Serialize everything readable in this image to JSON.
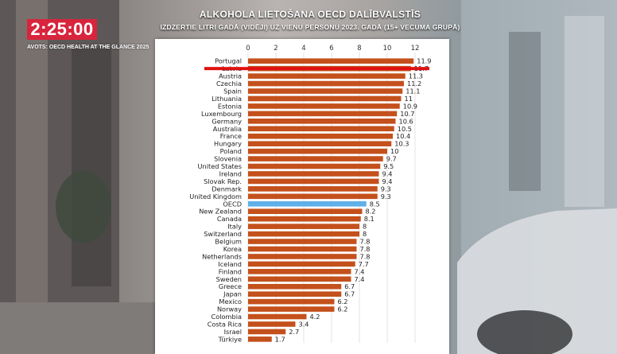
{
  "header": {
    "clock": "2:25:00",
    "source": "AVOTS: OECD HEALTH AT THE GLANCE 2025",
    "title": "ALKOHOLA LIETOŠANA OECD DALĪBVALSTĪS",
    "subtitle": "IZDZERTIE LITRI GADĀ (VIDĒJI) UZ VIENU PERSONU 2023. GADĀ (15+ VECUMA GRUPĀ)"
  },
  "colors": {
    "bar": "#c4501c",
    "highlight_bar": "#5fb0e8",
    "highlight_line": "#e01010",
    "clock_bg": "#d8243d"
  },
  "chart_data": {
    "type": "bar",
    "orientation": "horizontal",
    "xticks": [
      "0",
      "2",
      "4",
      "6",
      "8",
      "10",
      "12"
    ],
    "xlim": [
      0,
      12
    ],
    "grid": true,
    "highlighted": [
      "Latvia",
      "OECD"
    ],
    "categories": [
      "Portugal",
      "Latvia",
      "Austria",
      "Czechia",
      "Spain",
      "Lithuania",
      "Estonia",
      "Luxembourg",
      "Germany",
      "Australia",
      "France",
      "Hungary",
      "Poland",
      "Slovenia",
      "United States",
      "Ireland",
      "Slovak Rep.",
      "Denmark",
      "United Kingdom",
      "OECD",
      "New Zealand",
      "Canada",
      "Italy",
      "Switzerland",
      "Belgium",
      "Korea",
      "Netherlands",
      "Iceland",
      "Finland",
      "Sweden",
      "Greece",
      "Japan",
      "Mexico",
      "Norway",
      "Colombia",
      "Costa Rica",
      "Israel",
      "Türkiye"
    ],
    "values": [
      11.9,
      11.7,
      11.3,
      11.2,
      11.1,
      11,
      10.9,
      10.7,
      10.6,
      10.5,
      10.4,
      10.3,
      10,
      9.7,
      9.5,
      9.4,
      9.4,
      9.3,
      9.3,
      8.5,
      8.2,
      8.1,
      8,
      8,
      7.8,
      7.8,
      7.8,
      7.7,
      7.4,
      7.4,
      6.7,
      6.7,
      6.2,
      6.2,
      4.2,
      3.4,
      2.7,
      1.7
    ],
    "value_labels": [
      "11.9",
      "11.7",
      "11.3",
      "11.2",
      "11.1",
      "11",
      "10.9",
      "10.7",
      "10.6",
      "10.5",
      "10.4",
      "10.3",
      "10",
      "9.7",
      "9.5",
      "9.4",
      "9.4",
      "9.3",
      "9.3",
      "8.5",
      "8.2",
      "8.1",
      "8",
      "8",
      "7.8",
      "7.8",
      "7.8",
      "7.7",
      "7.4",
      "7.4",
      "6.7",
      "6.7",
      "6.2",
      "6.2",
      "4.2",
      "3.4",
      "2.7",
      "1.7"
    ]
  }
}
